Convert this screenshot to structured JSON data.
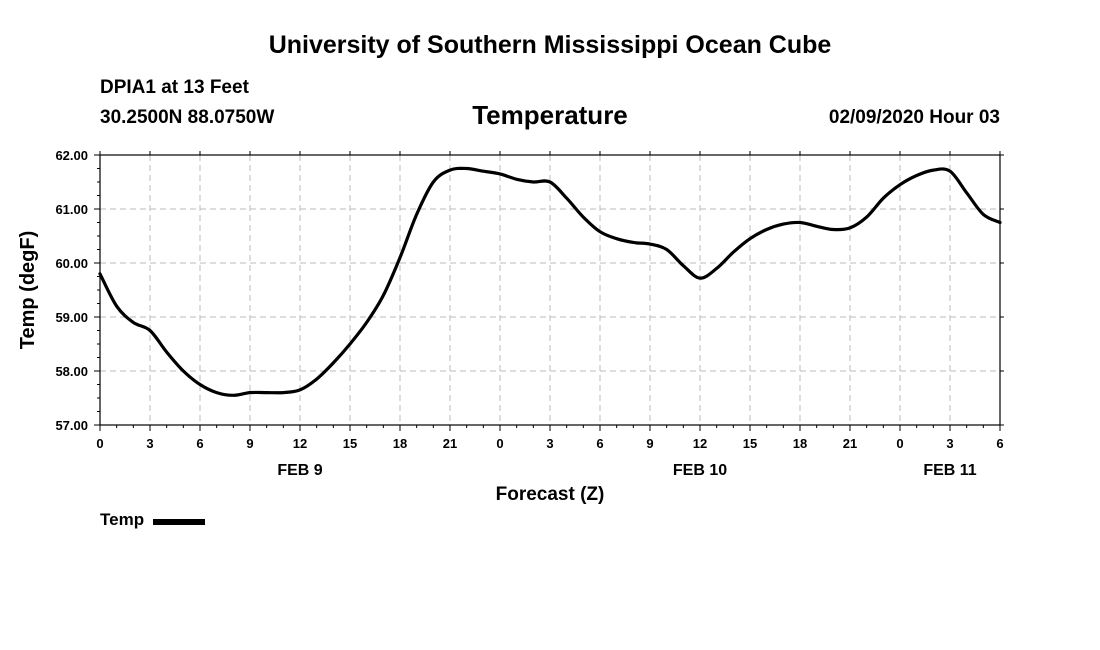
{
  "header": {
    "title": "University of Southern Mississippi Ocean Cube",
    "station": "DPIA1 at 13 Feet",
    "coords": "30.2500N 88.0750W",
    "parameter": "Temperature",
    "datetime": "02/09/2020 Hour 03"
  },
  "footer": {
    "title": "University of Southern Mississippi Ocean Cube"
  },
  "colors": {
    "line": "#000000",
    "grid": "#bbbbbb",
    "background": "#ffffff"
  },
  "chart_data": {
    "type": "line",
    "title": "Temperature",
    "xlabel": "Forecast (Z)",
    "ylabel": "Temp (degF)",
    "ylim": [
      57.0,
      62.0
    ],
    "yticks": [
      57.0,
      58.0,
      59.0,
      60.0,
      61.0,
      62.0
    ],
    "ytick_labels": [
      "57.00",
      "58.00",
      "59.00",
      "60.00",
      "61.00",
      "62.00"
    ],
    "xlim": [
      0,
      54
    ],
    "xticks": [
      0,
      3,
      6,
      9,
      12,
      15,
      18,
      21,
      24,
      27,
      30,
      33,
      36,
      39,
      42,
      45,
      48,
      51,
      54
    ],
    "xtick_labels": [
      "0",
      "3",
      "6",
      "9",
      "12",
      "15",
      "18",
      "21",
      "0",
      "3",
      "6",
      "9",
      "12",
      "15",
      "18",
      "21",
      "0",
      "3",
      "6"
    ],
    "day_labels": [
      {
        "x": 12,
        "label": "FEB 9"
      },
      {
        "x": 36,
        "label": "FEB 10"
      },
      {
        "x": 51,
        "label": "FEB 11"
      }
    ],
    "grid": true,
    "legend": {
      "position": "bottom-left",
      "entries": [
        "Temp"
      ]
    },
    "series": [
      {
        "name": "Temp",
        "x": [
          0,
          1,
          2,
          3,
          4,
          5,
          6,
          7,
          8,
          9,
          10,
          11,
          12,
          13,
          14,
          15,
          16,
          17,
          18,
          19,
          20,
          21,
          22,
          23,
          24,
          25,
          26,
          27,
          28,
          29,
          30,
          31,
          32,
          33,
          34,
          35,
          36,
          37,
          38,
          39,
          40,
          41,
          42,
          43,
          44,
          45,
          46,
          47,
          48,
          49,
          50,
          51,
          52,
          53,
          54
        ],
        "values": [
          59.8,
          59.2,
          58.9,
          58.75,
          58.35,
          58.0,
          57.75,
          57.6,
          57.55,
          57.6,
          57.6,
          57.6,
          57.65,
          57.85,
          58.15,
          58.5,
          58.9,
          59.4,
          60.1,
          60.9,
          61.5,
          61.72,
          61.75,
          61.7,
          61.65,
          61.55,
          61.5,
          61.5,
          61.2,
          60.85,
          60.58,
          60.45,
          60.38,
          60.35,
          60.25,
          59.95,
          59.72,
          59.9,
          60.2,
          60.45,
          60.62,
          60.72,
          60.75,
          60.68,
          60.62,
          60.65,
          60.85,
          61.2,
          61.45,
          61.62,
          61.72,
          61.7,
          61.3,
          60.9,
          60.75
        ]
      }
    ]
  },
  "legend": {
    "label": "Temp"
  }
}
